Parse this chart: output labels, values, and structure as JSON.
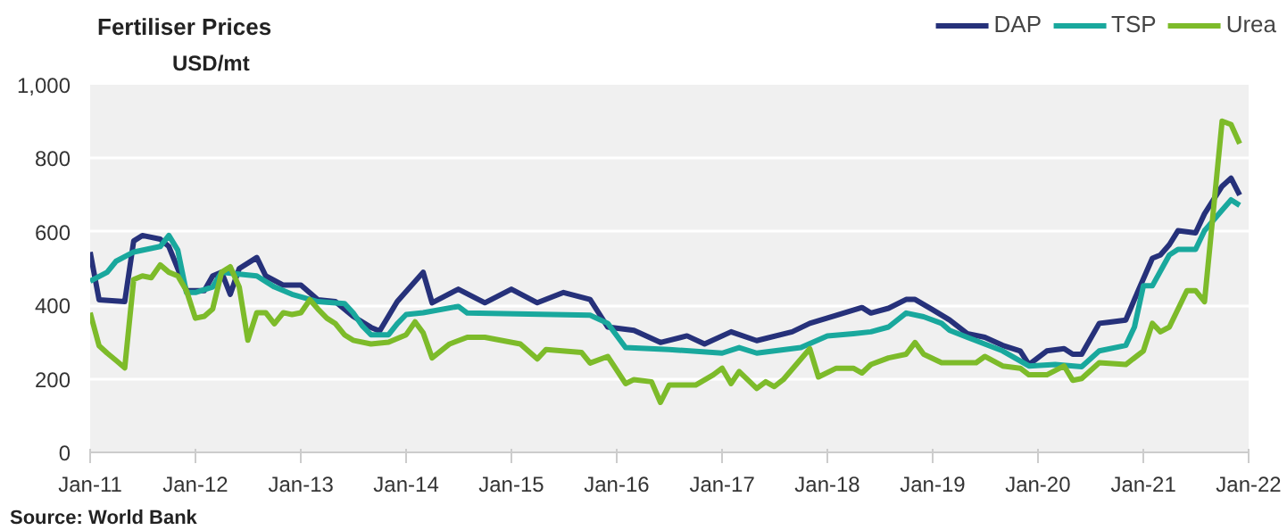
{
  "chart_data": {
    "type": "line",
    "title": "Fertiliser Prices",
    "ylabel": "USD/mt",
    "annotations": [
      "Source: World Bank"
    ],
    "xlim": [
      "2011-01",
      "2022-01"
    ],
    "ylim": [
      0,
      1000
    ],
    "xticks": [
      {
        "value": "2011-01",
        "label": "Jan-11"
      },
      {
        "value": "2012-01",
        "label": "Jan-12"
      },
      {
        "value": "2013-01",
        "label": "Jan-13"
      },
      {
        "value": "2014-01",
        "label": "Jan-14"
      },
      {
        "value": "2015-01",
        "label": "Jan-15"
      },
      {
        "value": "2016-01",
        "label": "Jan-16"
      },
      {
        "value": "2017-01",
        "label": "Jan-17"
      },
      {
        "value": "2018-01",
        "label": "Jan-18"
      },
      {
        "value": "2019-01",
        "label": "Jan-19"
      },
      {
        "value": "2020-01",
        "label": "Jan-20"
      },
      {
        "value": "2021-01",
        "label": "Jan-21"
      },
      {
        "value": "2022-01",
        "label": "Jan-22"
      }
    ],
    "yticks": [
      0,
      200,
      400,
      600,
      800,
      {
        "value": 1000,
        "label": "1,000"
      }
    ],
    "grid": "y",
    "legend": "top right",
    "marker": "none",
    "line_style": "solid",
    "series": [
      {
        "name": "DAP",
        "color": "#26317a",
        "x": [
          "2011-01",
          "2011-02",
          "2011-05",
          "2011-06",
          "2011-07",
          "2011-09",
          "2011-10",
          "2011-11",
          "2011-12",
          "2012-02",
          "2012-03",
          "2012-04",
          "2012-05",
          "2012-06",
          "2012-08",
          "2012-09",
          "2012-11",
          "2013-01",
          "2013-03",
          "2013-05",
          "2013-07",
          "2013-09",
          "2013-10",
          "2013-12",
          "2014-03",
          "2014-04",
          "2014-07",
          "2014-10",
          "2015-01",
          "2015-04",
          "2015-07",
          "2015-10",
          "2015-12",
          "2016-03",
          "2016-06",
          "2016-09",
          "2016-11",
          "2017-02",
          "2017-05",
          "2017-09",
          "2017-11",
          "2018-02",
          "2018-05",
          "2018-06",
          "2018-08",
          "2018-10",
          "2018-11",
          "2019-01",
          "2019-03",
          "2019-05",
          "2019-07",
          "2019-09",
          "2019-11",
          "2019-12",
          "2020-02",
          "2020-04",
          "2020-05",
          "2020-06",
          "2020-08",
          "2020-09",
          "2020-11",
          "2020-12",
          "2021-02",
          "2021-03",
          "2021-04",
          "2021-05",
          "2021-07",
          "2021-08",
          "2021-10",
          "2021-11",
          "2021-12"
        ],
        "values": [
          545,
          415,
          410,
          575,
          590,
          580,
          560,
          500,
          440,
          440,
          480,
          490,
          430,
          500,
          530,
          480,
          455,
          455,
          415,
          410,
          370,
          340,
          330,
          410,
          490,
          407,
          444,
          407,
          444,
          407,
          435,
          416,
          341,
          332,
          299,
          317,
          295,
          328,
          304,
          328,
          351,
          373,
          394,
          379,
          392,
          416,
          416,
          388,
          360,
          323,
          313,
          291,
          276,
          239,
          276,
          282,
          267,
          267,
          351,
          354,
          360,
          416,
          528,
          537,
          565,
          603,
          597,
          649,
          724,
          746,
          700
        ]
      },
      {
        "name": "TSP",
        "color": "#19a89d",
        "x": [
          "2011-01",
          "2011-03",
          "2011-04",
          "2011-06",
          "2011-09",
          "2011-10",
          "2011-11",
          "2011-12",
          "2012-01",
          "2012-03",
          "2012-04",
          "2012-06",
          "2012-08",
          "2012-10",
          "2012-12",
          "2013-03",
          "2013-06",
          "2013-07",
          "2013-08",
          "2013-09",
          "2013-11",
          "2013-12",
          "2014-01",
          "2014-03",
          "2014-07",
          "2014-08",
          "2015-10",
          "2015-12",
          "2016-02",
          "2016-07",
          "2017-01",
          "2017-03",
          "2017-05",
          "2017-10",
          "2018-01",
          "2018-04",
          "2018-06",
          "2018-08",
          "2018-10",
          "2018-12",
          "2019-02",
          "2019-03",
          "2019-05",
          "2019-09",
          "2019-12",
          "2020-03",
          "2020-06",
          "2020-08",
          "2020-11",
          "2020-12",
          "2021-01",
          "2021-02",
          "2021-04",
          "2021-05",
          "2021-07",
          "2021-08",
          "2021-10",
          "2021-11",
          "2021-12"
        ],
        "values": [
          466,
          490,
          520,
          545,
          560,
          590,
          550,
          435,
          435,
          450,
          490,
          485,
          480,
          450,
          430,
          410,
          405,
          380,
          345,
          320,
          320,
          350,
          375,
          380,
          397,
          379,
          373,
          351,
          285,
          280,
          270,
          285,
          270,
          285,
          317,
          323,
          328,
          341,
          379,
          369,
          351,
          332,
          313,
          276,
          235,
          239,
          233,
          276,
          291,
          341,
          453,
          453,
          537,
          552,
          552,
          603,
          659,
          687,
          672
        ]
      },
      {
        "name": "Urea",
        "color": "#7dbb2a",
        "x": [
          "2011-01",
          "2011-02",
          "2011-03",
          "2011-04",
          "2011-05",
          "2011-06",
          "2011-07",
          "2011-08",
          "2011-09",
          "2011-10",
          "2011-11",
          "2011-12",
          "2012-01",
          "2012-02",
          "2012-03",
          "2012-04",
          "2012-05",
          "2012-06",
          "2012-07",
          "2012-08",
          "2012-09",
          "2012-10",
          "2012-11",
          "2012-12",
          "2013-01",
          "2013-02",
          "2013-03",
          "2013-04",
          "2013-05",
          "2013-06",
          "2013-07",
          "2013-09",
          "2013-11",
          "2014-01",
          "2014-02",
          "2014-03",
          "2014-04",
          "2014-06",
          "2014-08",
          "2014-10",
          "2015-02",
          "2015-04",
          "2015-05",
          "2015-09",
          "2015-10",
          "2015-12",
          "2016-02",
          "2016-03",
          "2016-05",
          "2016-06",
          "2016-07",
          "2016-10",
          "2016-12",
          "2017-01",
          "2017-02",
          "2017-03",
          "2017-05",
          "2017-06",
          "2017-07",
          "2017-08",
          "2017-11",
          "2017-12",
          "2018-02",
          "2018-04",
          "2018-05",
          "2018-06",
          "2018-08",
          "2018-10",
          "2018-11",
          "2018-12",
          "2019-02",
          "2019-06",
          "2019-07",
          "2019-09",
          "2019-11",
          "2019-12",
          "2020-02",
          "2020-04",
          "2020-05",
          "2020-06",
          "2020-08",
          "2020-11",
          "2021-01",
          "2021-02",
          "2021-03",
          "2021-04",
          "2021-06",
          "2021-07",
          "2021-08",
          "2021-10",
          "2021-11",
          "2021-12"
        ],
        "values": [
          380,
          290,
          270,
          250,
          230,
          470,
          480,
          475,
          510,
          490,
          480,
          440,
          365,
          370,
          390,
          490,
          505,
          450,
          305,
          380,
          380,
          350,
          380,
          375,
          380,
          415,
          390,
          365,
          350,
          320,
          305,
          295,
          300,
          320,
          355,
          325,
          257,
          295,
          313,
          313,
          295,
          254,
          280,
          272,
          243,
          261,
          187,
          198,
          192,
          136,
          183,
          183,
          211,
          229,
          187,
          220,
          174,
          192,
          179,
          198,
          282,
          205,
          229,
          229,
          216,
          239,
          257,
          267,
          299,
          267,
          244,
          244,
          261,
          235,
          229,
          211,
          211,
          235,
          196,
          201,
          244,
          239,
          276,
          351,
          328,
          341,
          440,
          440,
          410,
          901,
          892,
          840
        ]
      }
    ]
  }
}
